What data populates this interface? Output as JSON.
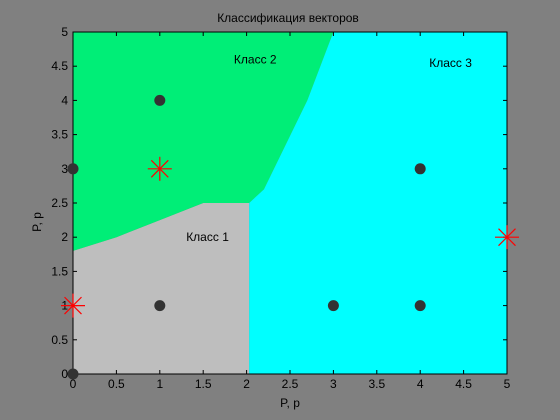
{
  "chart_data": {
    "type": "scatter",
    "title": "Классификация векторов",
    "xlabel": "P, p",
    "ylabel": "P, p",
    "xlim": [
      0,
      5
    ],
    "ylim": [
      0,
      5
    ],
    "x_ticks": [
      "0",
      "0.5",
      "1",
      "1.5",
      "2",
      "2.5",
      "3",
      "3.5",
      "4",
      "4.5",
      "5"
    ],
    "y_ticks": [
      "0",
      "0.5",
      "1",
      "1.5",
      "2",
      "2.5",
      "3",
      "3.5",
      "4",
      "4.5",
      "5"
    ],
    "grid": false,
    "background": "#808080",
    "regions": [
      {
        "name": "Класс 1",
        "color": "#bebebe",
        "label_at": [
          1.55,
          2.0
        ],
        "polygon": [
          [
            0,
            0
          ],
          [
            2.03,
            0
          ],
          [
            2.03,
            2.5
          ],
          [
            1.5,
            2.5
          ],
          [
            1.0,
            2.25
          ],
          [
            0.5,
            2.0
          ],
          [
            0,
            1.8
          ]
        ]
      },
      {
        "name": "Класс 2",
        "color": "#00ee77",
        "label_at": [
          2.1,
          4.6
        ],
        "polygon": [
          [
            0,
            1.8
          ],
          [
            0.5,
            2.0
          ],
          [
            1.0,
            2.25
          ],
          [
            1.5,
            2.5
          ],
          [
            2.03,
            2.5
          ],
          [
            2.2,
            2.7
          ],
          [
            2.7,
            4.0
          ],
          [
            3.0,
            5.0
          ],
          [
            0,
            5.0
          ]
        ]
      },
      {
        "name": "Класс 3",
        "color": "#00ffff",
        "label_at": [
          4.35,
          4.55
        ],
        "polygon": [
          [
            2.03,
            0
          ],
          [
            5.0,
            0
          ],
          [
            5.0,
            5.0
          ],
          [
            3.0,
            5.0
          ],
          [
            2.7,
            4.0
          ],
          [
            2.2,
            2.7
          ],
          [
            2.03,
            2.5
          ]
        ]
      }
    ],
    "series": [
      {
        "marker": "dot",
        "color": "#333333",
        "points": [
          [
            0,
            0
          ],
          [
            0,
            3
          ],
          [
            1,
            1
          ],
          [
            1,
            4
          ],
          [
            3,
            1
          ],
          [
            4,
            1
          ],
          [
            4,
            3
          ]
        ]
      },
      {
        "marker": "star",
        "color": "#ff0000",
        "points": [
          [
            0,
            1
          ],
          [
            1,
            3
          ],
          [
            5,
            2
          ]
        ]
      }
    ]
  }
}
